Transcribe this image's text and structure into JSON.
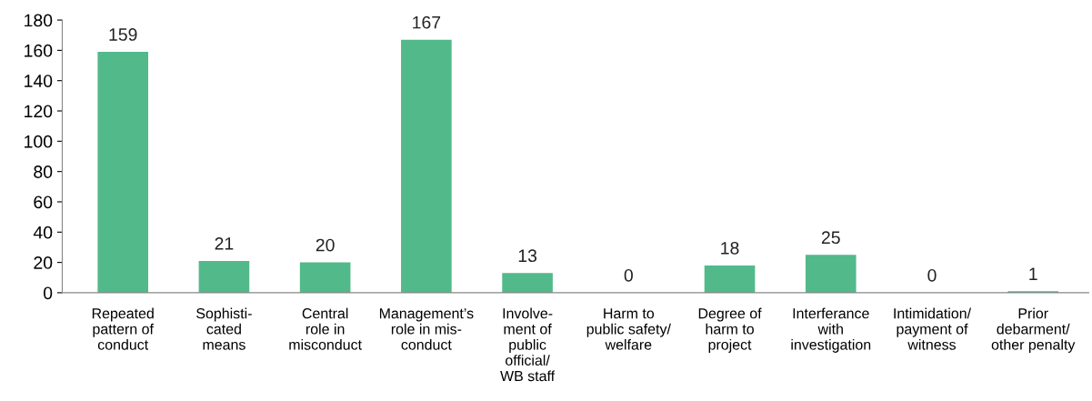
{
  "chart_data": {
    "type": "bar",
    "categories": [
      "Repeated\npattern of\nconduct",
      "Sophisti-\ncated\nmeans",
      "Central\nrole in\nmisconduct",
      "Management’s\nrole in mis-\nconduct",
      "Involve-\nment of\npublic\nofficial/\nWB staff",
      "Harm to\npublic safety/\nwelfare",
      "Degree of\nharm to\nproject",
      "Interferance\nwith\ninvestigation",
      "Intimidation/\npayment of\nwitness",
      "Prior\ndebarment/\nother penalty"
    ],
    "values": [
      159,
      21,
      20,
      167,
      13,
      0,
      18,
      25,
      0,
      1
    ],
    "color": "#52b98a",
    "ylim": [
      0,
      180
    ],
    "yticks": [
      0,
      20,
      40,
      60,
      80,
      100,
      120,
      140,
      160,
      180
    ],
    "data_labels": true,
    "grid": false
  }
}
